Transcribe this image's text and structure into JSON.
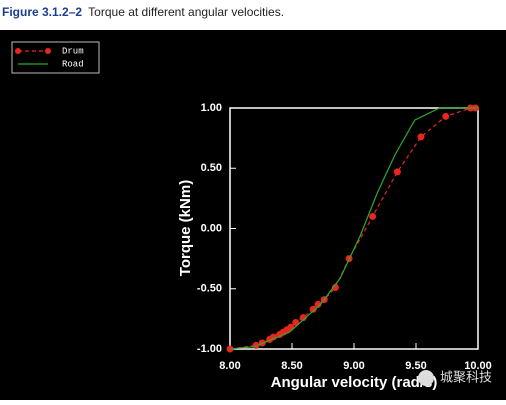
{
  "caption": {
    "label": "Figure 3.1.2–2",
    "text": "Torque at different angular velocities."
  },
  "watermark": "城聚科技",
  "chart_data": {
    "type": "line",
    "xlabel": "Angular velocity (rad/s)",
    "ylabel": "Torque (kNm)",
    "xlim": [
      8,
      10
    ],
    "ylim": [
      -1,
      1
    ],
    "xticks": [
      {
        "value": 8,
        "label": "8.00"
      },
      {
        "value": 8.5,
        "label": "8.50"
      },
      {
        "value": 9,
        "label": "9.00"
      },
      {
        "value": 9.5,
        "label": "9.50"
      },
      {
        "value": 10,
        "label": "10.00"
      }
    ],
    "yticks": [
      {
        "value": -1,
        "label": "-1.00"
      },
      {
        "value": -0.5,
        "label": "-0.50"
      },
      {
        "value": 0,
        "label": "0.00"
      },
      {
        "value": 0.5,
        "label": "0.50"
      },
      {
        "value": 1,
        "label": "1.00"
      }
    ],
    "grid": false,
    "legend": "upper-left",
    "series": [
      {
        "name": "Drum",
        "color": "#e8261f",
        "linestyle": "dashed",
        "marker": "o",
        "x": [
          8.0,
          8.21,
          8.26,
          8.32,
          8.35,
          8.4,
          8.43,
          8.46,
          8.49,
          8.53,
          8.59,
          8.67,
          8.71,
          8.76,
          8.85,
          8.96,
          9.15,
          9.35,
          9.54,
          9.74,
          9.94,
          9.98
        ],
        "values": [
          -1.0,
          -0.97,
          -0.95,
          -0.92,
          -0.9,
          -0.88,
          -0.86,
          -0.84,
          -0.82,
          -0.78,
          -0.74,
          -0.67,
          -0.63,
          -0.59,
          -0.49,
          -0.25,
          0.1,
          0.47,
          0.76,
          0.93,
          1.0,
          1.0
        ]
      },
      {
        "name": "Road",
        "color": "#2ea82e",
        "linestyle": "solid",
        "x": [
          8.0,
          8.2,
          8.48,
          8.73,
          8.89,
          9.05,
          9.19,
          9.33,
          9.49,
          9.69,
          10.0
        ],
        "values": [
          -1.0,
          -0.98,
          -0.86,
          -0.63,
          -0.41,
          -0.06,
          0.3,
          0.61,
          0.9,
          1.0,
          1.0
        ]
      }
    ]
  }
}
